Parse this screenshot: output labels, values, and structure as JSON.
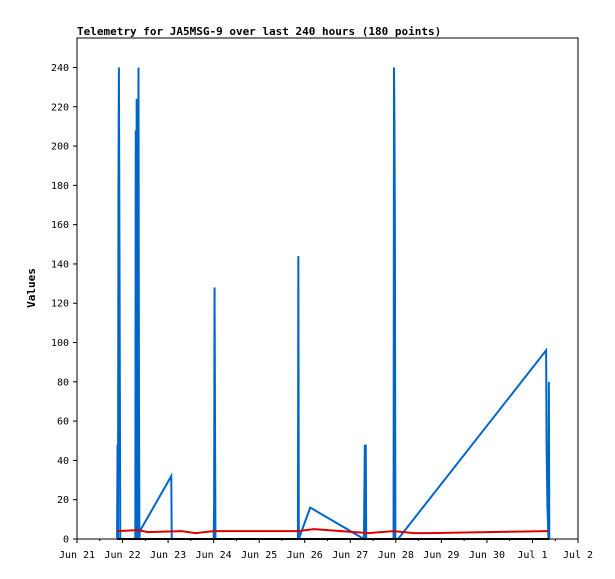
{
  "chart_data": {
    "type": "line",
    "title": "Telemetry for JA5MSG-9 over last 240 hours (180 points)",
    "xlabel": "",
    "ylabel": "Values",
    "ylim": [
      0,
      255
    ],
    "xlim": [
      0,
      11
    ],
    "x_ticks": [
      {
        "x": 0,
        "label": "Jun 21"
      },
      {
        "x": 1,
        "label": "Jun 22"
      },
      {
        "x": 2,
        "label": "Jun 23"
      },
      {
        "x": 3,
        "label": "Jun 24"
      },
      {
        "x": 4,
        "label": "Jun 25"
      },
      {
        "x": 5,
        "label": "Jun 26"
      },
      {
        "x": 6,
        "label": "Jun 27"
      },
      {
        "x": 7,
        "label": "Jun 28"
      },
      {
        "x": 8,
        "label": "Jun 29"
      },
      {
        "x": 9,
        "label": "Jun 30"
      },
      {
        "x": 10,
        "label": "Jul 1"
      },
      {
        "x": 11,
        "label": "Jul 2"
      }
    ],
    "y_ticks": [
      0,
      20,
      40,
      60,
      80,
      100,
      120,
      140,
      160,
      180,
      200,
      220,
      240
    ],
    "grid": false,
    "legend": "none",
    "series": [
      {
        "color": "#0066cc",
        "points": [
          [
            0.88,
            0
          ],
          [
            0.89,
            48
          ],
          [
            0.9,
            0
          ],
          [
            0.91,
            176
          ],
          [
            0.92,
            240
          ],
          [
            0.935,
            128
          ],
          [
            0.95,
            0
          ],
          [
            1.28,
            0
          ],
          [
            1.29,
            208
          ],
          [
            1.3,
            0
          ],
          [
            1.31,
            224
          ],
          [
            1.32,
            160
          ],
          [
            1.33,
            0
          ],
          [
            1.34,
            120
          ],
          [
            1.35,
            240
          ],
          [
            1.36,
            80
          ],
          [
            1.37,
            0
          ],
          [
            1.38,
            4
          ],
          [
            2.07,
            32
          ],
          [
            2.08,
            0
          ],
          [
            3.0,
            0
          ],
          [
            3.01,
            16
          ],
          [
            3.02,
            128
          ],
          [
            3.03,
            64
          ],
          [
            3.04,
            0
          ],
          [
            4.85,
            0
          ],
          [
            4.86,
            144
          ],
          [
            4.87,
            0
          ],
          [
            5.12,
            16
          ],
          [
            6.3,
            0
          ],
          [
            6.32,
            48
          ],
          [
            6.33,
            0
          ],
          [
            6.34,
            48
          ],
          [
            6.35,
            0
          ],
          [
            6.95,
            0
          ],
          [
            6.96,
            240
          ],
          [
            6.97,
            212
          ],
          [
            6.98,
            156
          ],
          [
            6.99,
            0
          ],
          [
            7.05,
            0
          ],
          [
            10.3,
            96
          ],
          [
            10.31,
            48
          ],
          [
            10.33,
            16
          ],
          [
            10.35,
            0
          ],
          [
            10.36,
            80
          ],
          [
            10.37,
            0
          ]
        ]
      },
      {
        "color": "#dd0000",
        "points": [
          [
            0.88,
            4
          ],
          [
            1.35,
            4.5
          ],
          [
            1.55,
            3.5
          ],
          [
            2.3,
            4
          ],
          [
            2.6,
            3
          ],
          [
            3.0,
            4
          ],
          [
            4.85,
            4
          ],
          [
            5.2,
            5
          ],
          [
            5.8,
            4
          ],
          [
            6.4,
            3
          ],
          [
            6.95,
            4
          ],
          [
            7.4,
            3
          ],
          [
            7.7,
            3
          ],
          [
            9.0,
            3.5
          ],
          [
            10.35,
            4
          ]
        ]
      },
      {
        "color": "#000000",
        "points": [
          [
            0.88,
            0
          ],
          [
            10.37,
            0
          ]
        ]
      }
    ]
  }
}
